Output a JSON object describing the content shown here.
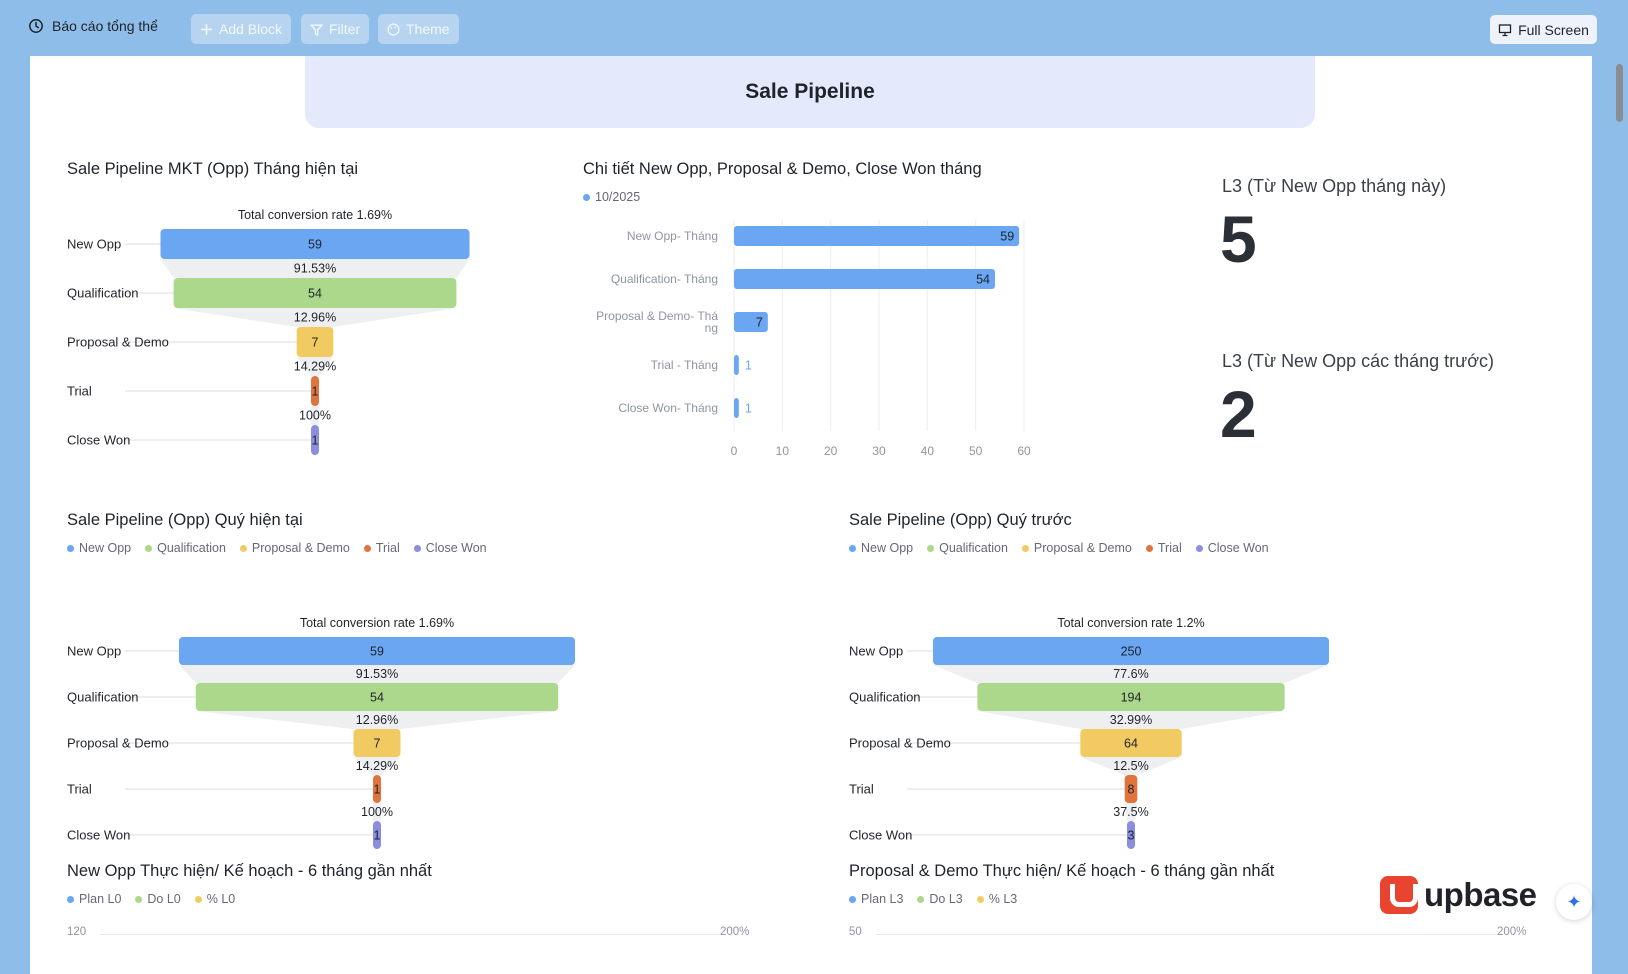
{
  "topbar": {
    "report_title": "Báo cáo tổng thể",
    "add_block": "Add Block",
    "filter": "Filter",
    "theme": "Theme",
    "full_screen": "Full Screen"
  },
  "banner": {
    "title": "Sale Pipeline"
  },
  "colors": {
    "blue": "#6aa6f1",
    "green": "#acd88b",
    "yellow": "#f1cb62",
    "orange": "#e1743e",
    "purple": "#8b8ee0"
  },
  "funnel_month": {
    "title": "Sale Pipeline MKT (Opp) Tháng hiện tại",
    "chart_data": {
      "type": "funnel",
      "total_label": "Total conversion rate 1.69%",
      "stages": [
        "New Opp",
        "Qualification",
        "Proposal & Demo",
        "Trial",
        "Close Won"
      ],
      "values": [
        59,
        54,
        7,
        1,
        1
      ],
      "rates": [
        "91.53%",
        "12.96%",
        "14.29%",
        "100%"
      ]
    }
  },
  "bar_detail": {
    "title": "Chi tiết New Opp, Proposal & Demo, Close Won tháng",
    "legend": "10/2025",
    "chart_data": {
      "type": "bar",
      "orientation": "horizontal",
      "categories": [
        "New Opp- Tháng",
        "Qualification- Tháng",
        "Proposal & Demo- Tháng",
        "Trial - Tháng",
        "Close Won- Tháng"
      ],
      "category_lines": [
        [
          "New Opp- Tháng"
        ],
        [
          "Qualification- Tháng"
        ],
        [
          "Proposal & Demo- Thá",
          "ng"
        ],
        [
          "Trial - Tháng"
        ],
        [
          "Close Won- Tháng"
        ]
      ],
      "series": [
        {
          "name": "10/2025",
          "values": [
            59,
            54,
            7,
            1,
            1
          ]
        }
      ],
      "xlim": [
        0,
        60
      ],
      "xticks": [
        "0",
        "10",
        "20",
        "30",
        "40",
        "50",
        "60"
      ]
    }
  },
  "kpi": [
    {
      "label": "L3 (Từ New Opp tháng này)",
      "value": "5"
    },
    {
      "label": "L3 (Từ New Opp các tháng trước)",
      "value": "2"
    }
  ],
  "funnel_quarter": {
    "title": "Sale Pipeline (Opp) Quý hiện tại",
    "legend": [
      "New Opp",
      "Qualification",
      "Proposal & Demo",
      "Trial",
      "Close Won"
    ],
    "chart_data": {
      "type": "funnel",
      "total_label": "Total conversion rate 1.69%",
      "stages": [
        "New Opp",
        "Qualification",
        "Proposal & Demo",
        "Trial",
        "Close Won"
      ],
      "values": [
        59,
        54,
        7,
        1,
        1
      ],
      "rates": [
        "91.53%",
        "12.96%",
        "14.29%",
        "100%"
      ]
    }
  },
  "funnel_prev_quarter": {
    "title": "Sale Pipeline (Opp) Quý trước",
    "legend": [
      "New Opp",
      "Qualification",
      "Proposal & Demo",
      "Trial",
      "Close Won"
    ],
    "chart_data": {
      "type": "funnel",
      "total_label": "Total conversion rate 1.2%",
      "stages": [
        "New Opp",
        "Qualification",
        "Proposal & Demo",
        "Trial",
        "Close Won"
      ],
      "values": [
        250,
        194,
        64,
        8,
        3
      ],
      "rates": [
        "77.6%",
        "32.99%",
        "12.5%",
        "37.5%"
      ]
    }
  },
  "newopp_plan": {
    "title": "New Opp Thực hiện/ Kế hoạch - 6 tháng gần nhất",
    "legend": [
      "Plan L0",
      "Do L0",
      "% L0"
    ],
    "y_left_top": "120",
    "y_right_top": "200%"
  },
  "proposal_plan": {
    "title": "Proposal & Demo Thực hiện/ Kế hoạch - 6 tháng gần nhất",
    "legend": [
      "Plan L3",
      "Do L3",
      "% L3"
    ],
    "y_left_top": "50",
    "y_right_top": "200%"
  },
  "brand": {
    "name": "upbase"
  },
  "ai_button": {
    "icon": "sparkle-icon"
  }
}
